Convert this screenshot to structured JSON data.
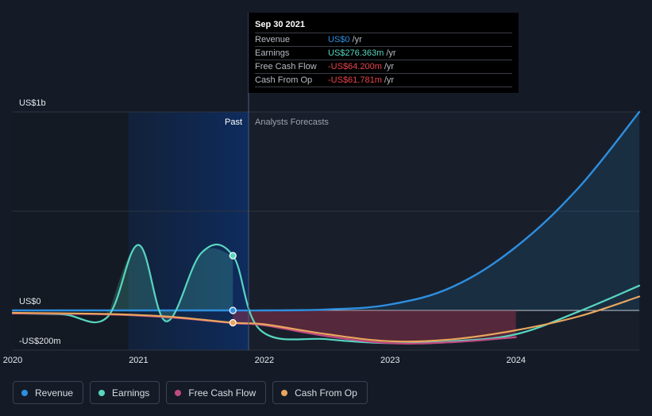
{
  "chart_data": {
    "type": "line",
    "title": "",
    "y_unit": "US$",
    "ylim": [
      -200,
      1000
    ],
    "xlim": [
      2020.0,
      2024.98
    ],
    "y_tick_labels": [
      {
        "value": 1000,
        "label": "US$1b"
      },
      {
        "value": 0,
        "label": "US$0"
      },
      {
        "value": -200,
        "label": "-US$200m"
      }
    ],
    "x_ticks": [
      {
        "value": 2020,
        "label": "2020"
      },
      {
        "value": 2021,
        "label": "2021"
      },
      {
        "value": 2022,
        "label": "2022"
      },
      {
        "value": 2023,
        "label": "2023"
      },
      {
        "value": 2024,
        "label": "2024"
      }
    ],
    "past_label": "Past",
    "forecast_label": "Analysts Forecasts",
    "past_start": 2020.75,
    "divider_x": 2021.75,
    "series": [
      {
        "name": "Revenue",
        "color": "#2d8fe0",
        "points": [
          [
            2020.0,
            0
          ],
          [
            2020.75,
            0
          ],
          [
            2021.75,
            0
          ],
          [
            2022.0,
            0
          ],
          [
            2022.5,
            5
          ],
          [
            2023.0,
            30
          ],
          [
            2023.5,
            120
          ],
          [
            2024.0,
            320
          ],
          [
            2024.5,
            620
          ],
          [
            2024.98,
            1000
          ]
        ]
      },
      {
        "name": "Earnings",
        "color": "#58d6c0",
        "points": [
          [
            2020.0,
            -15
          ],
          [
            2020.4,
            -20
          ],
          [
            2020.75,
            -35
          ],
          [
            2021.0,
            330
          ],
          [
            2021.22,
            -55
          ],
          [
            2021.5,
            290
          ],
          [
            2021.75,
            276
          ],
          [
            2021.97,
            -100
          ],
          [
            2022.5,
            -145
          ],
          [
            2023.0,
            -165
          ],
          [
            2023.5,
            -155
          ],
          [
            2024.0,
            -120
          ],
          [
            2024.5,
            -5
          ],
          [
            2024.98,
            125
          ]
        ]
      },
      {
        "name": "Free Cash Flow",
        "color": "#c14a82",
        "points": [
          [
            2020.0,
            -15
          ],
          [
            2020.75,
            -20
          ],
          [
            2021.25,
            -35
          ],
          [
            2021.75,
            -64
          ],
          [
            2022.0,
            -75
          ],
          [
            2022.5,
            -130
          ],
          [
            2023.0,
            -165
          ],
          [
            2023.5,
            -160
          ],
          [
            2024.0,
            -135
          ]
        ]
      },
      {
        "name": "Cash From Op",
        "color": "#e9a65d",
        "points": [
          [
            2020.0,
            -12
          ],
          [
            2020.75,
            -18
          ],
          [
            2021.25,
            -32
          ],
          [
            2021.75,
            -62
          ],
          [
            2022.0,
            -70
          ],
          [
            2022.5,
            -120
          ],
          [
            2023.0,
            -155
          ],
          [
            2023.5,
            -145
          ],
          [
            2024.0,
            -100
          ],
          [
            2024.5,
            -30
          ],
          [
            2024.98,
            70
          ]
        ]
      }
    ]
  },
  "tooltip": {
    "date": "Sep 30 2021",
    "rows": [
      {
        "label": "Revenue",
        "value": "US$0",
        "unit": "/yr",
        "color": "#2d8fe0"
      },
      {
        "label": "Earnings",
        "value": "US$276.363m",
        "unit": "/yr",
        "color": "#58d6c0"
      },
      {
        "label": "Free Cash Flow",
        "value": "-US$64.200m",
        "unit": "/yr",
        "color": "#e8434d"
      },
      {
        "label": "Cash From Op",
        "value": "-US$61.781m",
        "unit": "/yr",
        "color": "#e8434d"
      }
    ]
  },
  "legend": [
    {
      "label": "Revenue",
      "color": "#2d8fe0"
    },
    {
      "label": "Earnings",
      "color": "#58d6c0"
    },
    {
      "label": "Free Cash Flow",
      "color": "#c14a82"
    },
    {
      "label": "Cash From Op",
      "color": "#e9a65d"
    }
  ]
}
